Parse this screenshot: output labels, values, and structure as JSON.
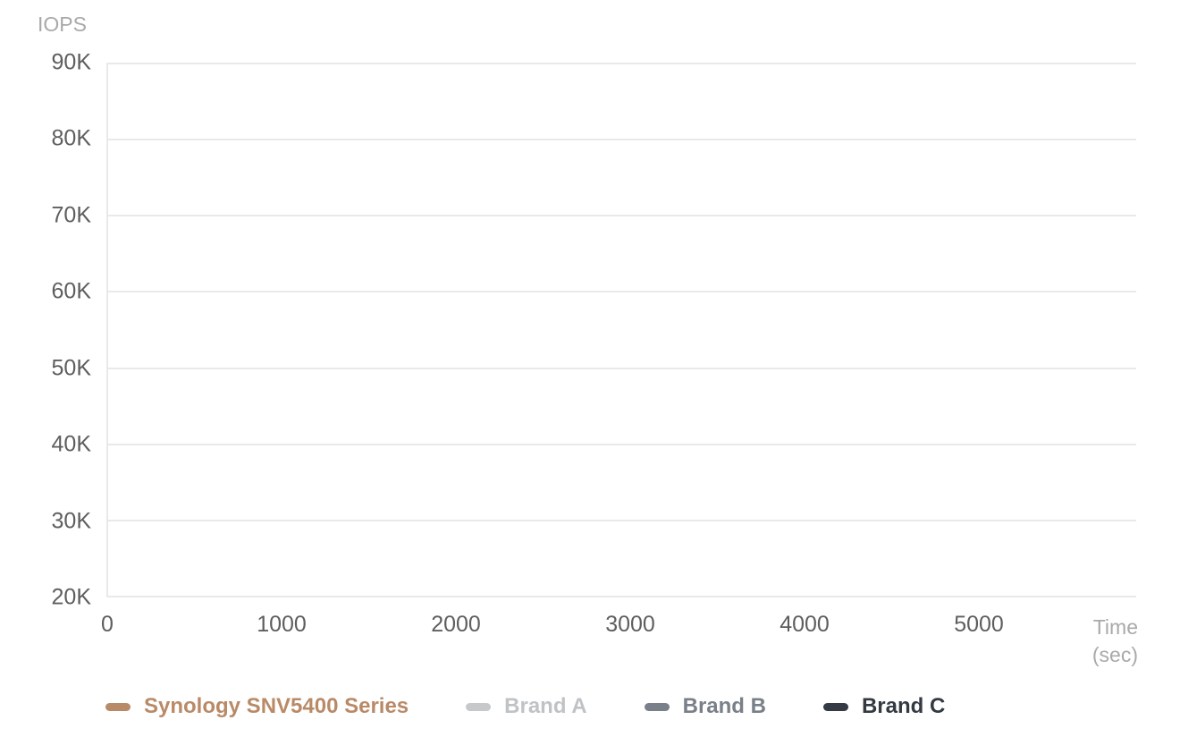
{
  "chart_data": {
    "type": "line",
    "title": "",
    "ylabel": "IOPS",
    "xlabel_line1": "Time",
    "xlabel_line2": "(sec)",
    "ylim": [
      20000,
      90000
    ],
    "xlim": [
      0,
      5900
    ],
    "grid": true,
    "legend_position": "bottom",
    "y_ticks": [
      "90K",
      "80K",
      "70K",
      "60K",
      "50K",
      "40K",
      "30K",
      "20K"
    ],
    "x_ticks": [
      "0",
      "1000",
      "2000",
      "3000",
      "4000",
      "5000"
    ],
    "series": [
      {
        "name": "Synology SNV5400 Series",
        "color": "#b98a67",
        "label_color": "#b98a67",
        "values": []
      },
      {
        "name": "Brand A",
        "color": "#c6c8ca",
        "label_color": "#c0c3c6",
        "values": []
      },
      {
        "name": "Brand B",
        "color": "#7a8089",
        "label_color": "#7a8089",
        "values": []
      },
      {
        "name": "Brand C",
        "color": "#353b44",
        "label_color": "#333a42",
        "values": []
      }
    ],
    "colors": {
      "gridline": "#e9e9e9",
      "tick_label": "#5e5e5e",
      "axis_title": "#a9a9a9",
      "background": "#ffffff"
    }
  }
}
